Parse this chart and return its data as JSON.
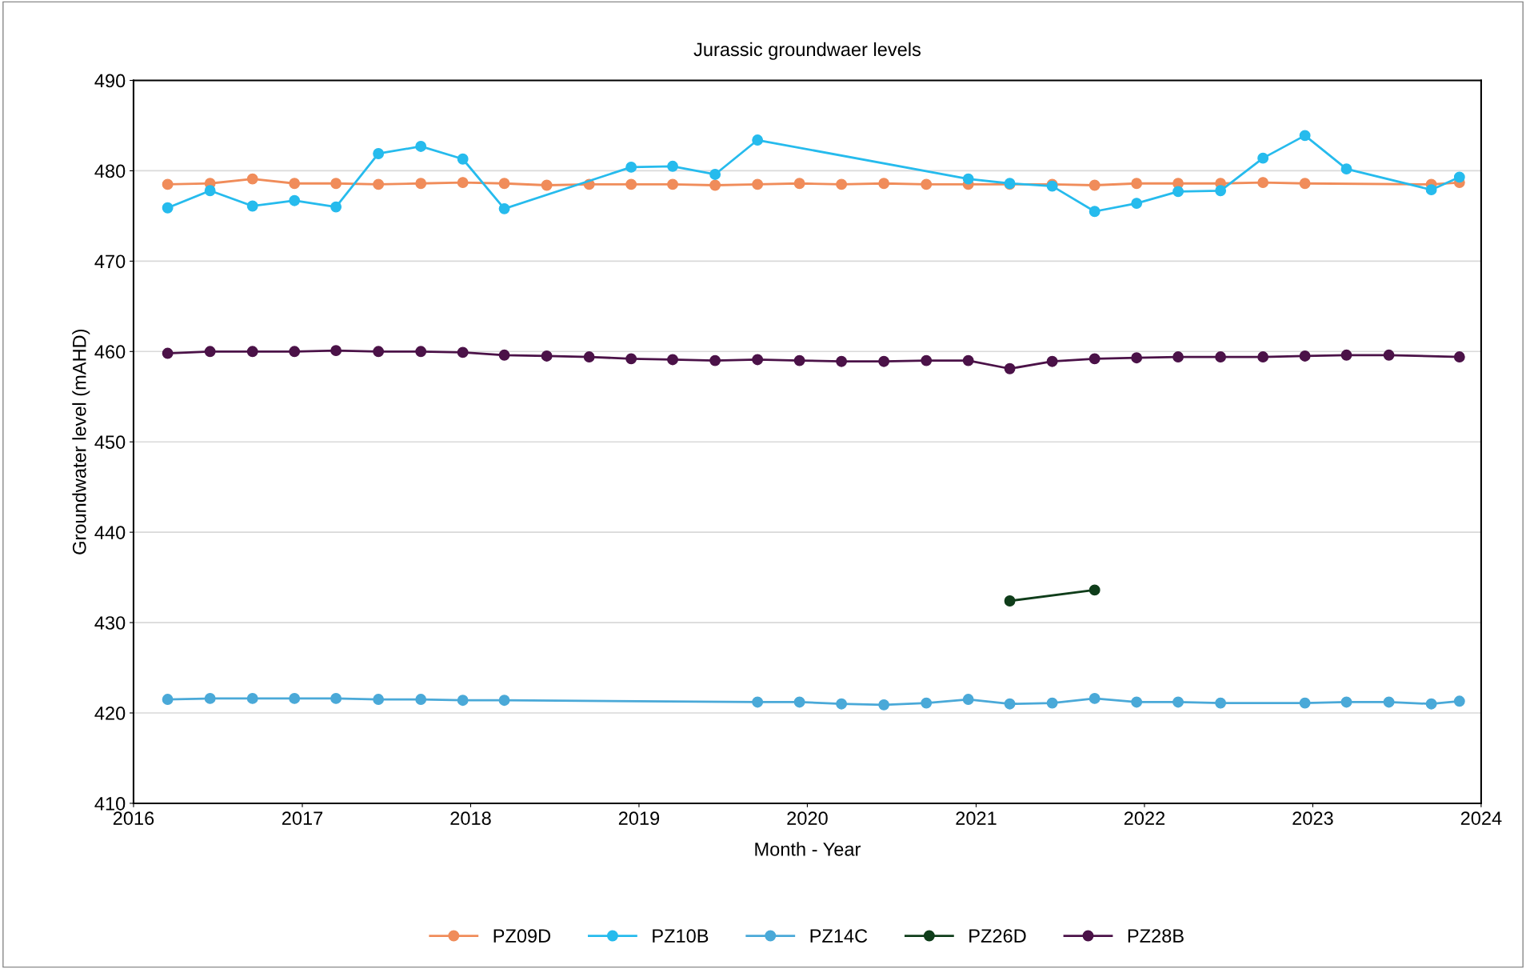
{
  "chart_data": {
    "type": "line",
    "title": "Jurassic groundwaer levels",
    "xlabel": "Month - Year",
    "ylabel": "Groundwater level (mAHD)",
    "xlim": [
      "2016",
      "2024"
    ],
    "xticks": [
      "2016",
      "2017",
      "2018",
      "2019",
      "2020",
      "2021",
      "2022",
      "2023",
      "2024"
    ],
    "ylim": [
      410,
      490
    ],
    "yticks": [
      410,
      420,
      430,
      440,
      450,
      460,
      470,
      480,
      490
    ],
    "grid": "y",
    "legend": "bottom",
    "marker": "circle",
    "line_style": "solid",
    "series": [
      {
        "name": "PZ09D",
        "color": "#f08c5a",
        "x": [
          "2016-03-15",
          "2016-06-15",
          "2016-09-15",
          "2016-12-15",
          "2017-03-15",
          "2017-06-15",
          "2017-09-15",
          "2017-12-15",
          "2018-03-15",
          "2018-06-15",
          "2018-09-15",
          "2018-12-15",
          "2019-03-15",
          "2019-06-15",
          "2019-09-15",
          "2019-12-15",
          "2020-03-15",
          "2020-06-15",
          "2020-09-15",
          "2020-12-15",
          "2021-03-15",
          "2021-06-15",
          "2021-09-15",
          "2021-12-15",
          "2022-03-15",
          "2022-06-15",
          "2022-09-15",
          "2022-12-15",
          "2023-09-15",
          "2023-11-15"
        ],
        "values": [
          478.5,
          478.6,
          479.1,
          478.6,
          478.6,
          478.5,
          478.6,
          478.7,
          478.6,
          478.4,
          478.5,
          478.5,
          478.5,
          478.4,
          478.5,
          478.6,
          478.5,
          478.6,
          478.5,
          478.5,
          478.5,
          478.5,
          478.4,
          478.6,
          478.6,
          478.6,
          478.7,
          478.6,
          478.5,
          478.7
        ]
      },
      {
        "name": "PZ10B",
        "color": "#26bbed",
        "x": [
          "2016-03-15",
          "2016-06-15",
          "2016-09-15",
          "2016-12-15",
          "2017-03-15",
          "2017-06-15",
          "2017-09-15",
          "2017-12-15",
          "2018-03-15",
          "2018-12-15",
          "2019-03-15",
          "2019-06-15",
          "2019-09-15",
          "2020-12-15",
          "2021-03-15",
          "2021-06-15",
          "2021-09-15",
          "2021-12-15",
          "2022-03-15",
          "2022-06-15",
          "2022-09-15",
          "2022-12-15",
          "2023-03-15",
          "2023-09-15",
          "2023-11-15"
        ],
        "values": [
          475.9,
          477.8,
          476.1,
          476.7,
          476.0,
          481.9,
          482.7,
          481.3,
          475.8,
          480.4,
          480.5,
          479.6,
          483.4,
          479.1,
          478.6,
          478.3,
          475.5,
          476.4,
          477.7,
          477.8,
          481.4,
          483.9,
          480.2,
          477.9,
          479.3
        ]
      },
      {
        "name": "PZ14C",
        "color": "#4aa9d8",
        "x": [
          "2016-03-15",
          "2016-06-15",
          "2016-09-15",
          "2016-12-15",
          "2017-03-15",
          "2017-06-15",
          "2017-09-15",
          "2017-12-15",
          "2018-03-15",
          "2019-09-15",
          "2019-12-15",
          "2020-03-15",
          "2020-06-15",
          "2020-09-15",
          "2020-12-15",
          "2021-03-15",
          "2021-06-15",
          "2021-09-15",
          "2021-12-15",
          "2022-03-15",
          "2022-06-15",
          "2022-12-15",
          "2023-03-15",
          "2023-06-15",
          "2023-09-15",
          "2023-11-15"
        ],
        "values": [
          421.5,
          421.6,
          421.6,
          421.6,
          421.6,
          421.5,
          421.5,
          421.4,
          421.4,
          421.2,
          421.2,
          421.0,
          420.9,
          421.1,
          421.5,
          421.0,
          421.1,
          421.6,
          421.2,
          421.2,
          421.1,
          421.1,
          421.2,
          421.2,
          421.0,
          421.3
        ]
      },
      {
        "name": "PZ26D",
        "color": "#0f3d1a",
        "x": [
          "2021-03-15",
          "2021-09-15"
        ],
        "values": [
          432.4,
          433.6
        ]
      },
      {
        "name": "PZ28B",
        "color": "#4b1248",
        "x": [
          "2016-03-15",
          "2016-06-15",
          "2016-09-15",
          "2016-12-15",
          "2017-03-15",
          "2017-06-15",
          "2017-09-15",
          "2017-12-15",
          "2018-03-15",
          "2018-06-15",
          "2018-09-15",
          "2018-12-15",
          "2019-03-15",
          "2019-06-15",
          "2019-09-15",
          "2019-12-15",
          "2020-03-15",
          "2020-06-15",
          "2020-09-15",
          "2020-12-15",
          "2021-03-15",
          "2021-06-15",
          "2021-09-15",
          "2021-12-15",
          "2022-03-15",
          "2022-06-15",
          "2022-09-15",
          "2022-12-15",
          "2023-03-15",
          "2023-06-15",
          "2023-11-15"
        ],
        "values": [
          459.8,
          460.0,
          460.0,
          460.0,
          460.1,
          460.0,
          460.0,
          459.9,
          459.6,
          459.5,
          459.4,
          459.2,
          459.1,
          459.0,
          459.1,
          459.0,
          458.9,
          458.9,
          459.0,
          459.0,
          458.1,
          458.9,
          459.2,
          459.3,
          459.4,
          459.4,
          459.4,
          459.5,
          459.6,
          459.6,
          459.4
        ]
      }
    ]
  }
}
